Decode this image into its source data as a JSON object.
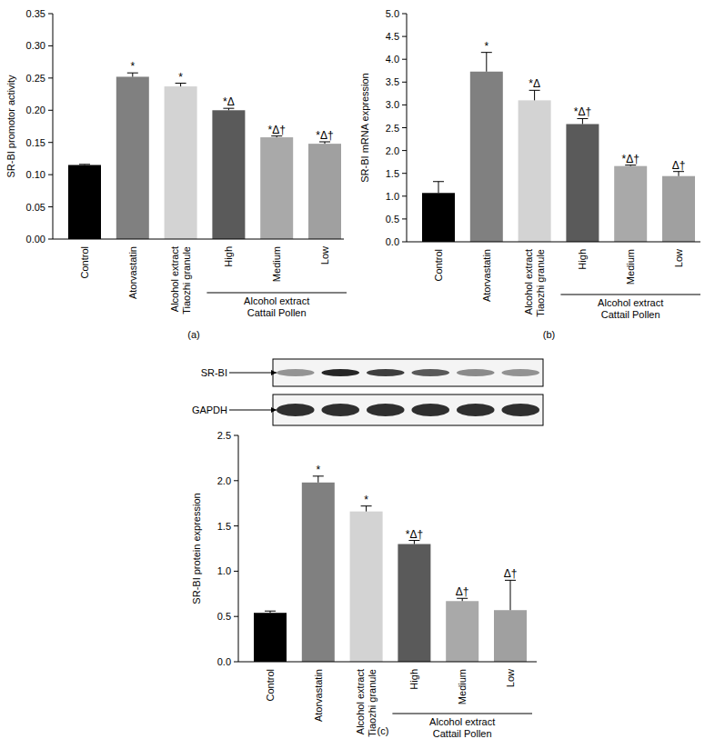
{
  "chart_data": [
    {
      "type": "bar",
      "subtitle": "(a)",
      "y_label": "SR-BI promotor activity",
      "categories": [
        "Control",
        "Atorvastatin",
        "Alcohol extract Tiaozhi granule",
        "High",
        "Medium",
        "Low"
      ],
      "values": [
        0.115,
        0.252,
        0.237,
        0.2,
        0.158,
        0.148
      ],
      "errors": [
        0.001,
        0.006,
        0.005,
        0.003,
        0.002,
        0.003
      ],
      "annotations": [
        null,
        "*",
        "*",
        "*Δ",
        "*Δ†",
        "*Δ†"
      ],
      "category_group": {
        "label": "Alcohol extract Cattail Pollen",
        "from": 3,
        "to": 5
      },
      "colors": [
        "#000000",
        "#808080",
        "#d3d3d3",
        "#5a5a5a",
        "#a9a9a9",
        "#a0a0a0"
      ],
      "ylim": [
        0,
        0.35
      ],
      "yticks": [
        {
          "value": 0,
          "label": "0.00"
        },
        0.05,
        {
          "value": 0.1,
          "label": "0.10"
        },
        0.15,
        {
          "value": 0.2,
          "label": "0.20"
        },
        0.25,
        {
          "value": 0.3,
          "label": "0.30"
        },
        0.35
      ],
      "grid": false
    },
    {
      "type": "bar",
      "subtitle": "(b)",
      "y_label": "SR-BI mRNA expression",
      "categories": [
        "Control",
        "Atorvastatin",
        "Alcohol extract Tiaozhi granule",
        "High",
        "Medium",
        "Low"
      ],
      "values": [
        1.07,
        3.73,
        3.1,
        2.58,
        1.66,
        1.44
      ],
      "errors": [
        0.25,
        0.42,
        0.22,
        0.12,
        0.02,
        0.1
      ],
      "annotations": [
        null,
        "*",
        "*Δ",
        "*Δ†",
        "*Δ†",
        "Δ†"
      ],
      "category_group": {
        "label": "Alcohol extract Cattail Pollen",
        "from": 3,
        "to": 5
      },
      "colors": [
        "#000000",
        "#808080",
        "#d3d3d3",
        "#5a5a5a",
        "#a9a9a9",
        "#a0a0a0"
      ],
      "ylim": [
        0,
        5
      ],
      "yticks": [
        {
          "value": 0,
          "label": "0.0"
        },
        0.5,
        {
          "value": 1,
          "label": "1.0"
        },
        1.5,
        {
          "value": 2,
          "label": "2.0"
        },
        2.5,
        {
          "value": 3,
          "label": "3.0"
        },
        3.5,
        {
          "value": 4,
          "label": "4.0"
        },
        4.5,
        {
          "value": 5,
          "label": "5.0"
        }
      ],
      "grid": false
    },
    {
      "type": "bar",
      "subtitle": "(c)",
      "y_label": "SR-BI protein expression",
      "categories": [
        "Control",
        "Atorvastatin",
        "Alcohol extract Tiaozhi granule",
        "High",
        "Medium",
        "Low"
      ],
      "values": [
        0.54,
        1.98,
        1.66,
        1.3,
        0.67,
        0.57
      ],
      "errors": [
        0.02,
        0.07,
        0.06,
        0.04,
        0.03,
        0.33
      ],
      "annotations": [
        null,
        "*",
        "*",
        "*Δ†",
        "Δ†",
        "Δ†"
      ],
      "category_group": {
        "label": "Alcohol extract Cattail Pollen",
        "from": 3,
        "to": 5
      },
      "colors": [
        "#000000",
        "#808080",
        "#d3d3d3",
        "#5a5a5a",
        "#a9a9a9",
        "#a0a0a0"
      ],
      "ylim": [
        0,
        2.5
      ],
      "yticks": [
        {
          "value": 0,
          "label": "0.0"
        },
        0.5,
        {
          "value": 1,
          "label": "1.0"
        },
        1.5,
        {
          "value": 2,
          "label": "2.0"
        },
        {
          "value": 2.5,
          "label": "2.5"
        }
      ],
      "grid": false,
      "blot_labels": [
        "SR-BI",
        "GAPDH"
      ]
    }
  ]
}
